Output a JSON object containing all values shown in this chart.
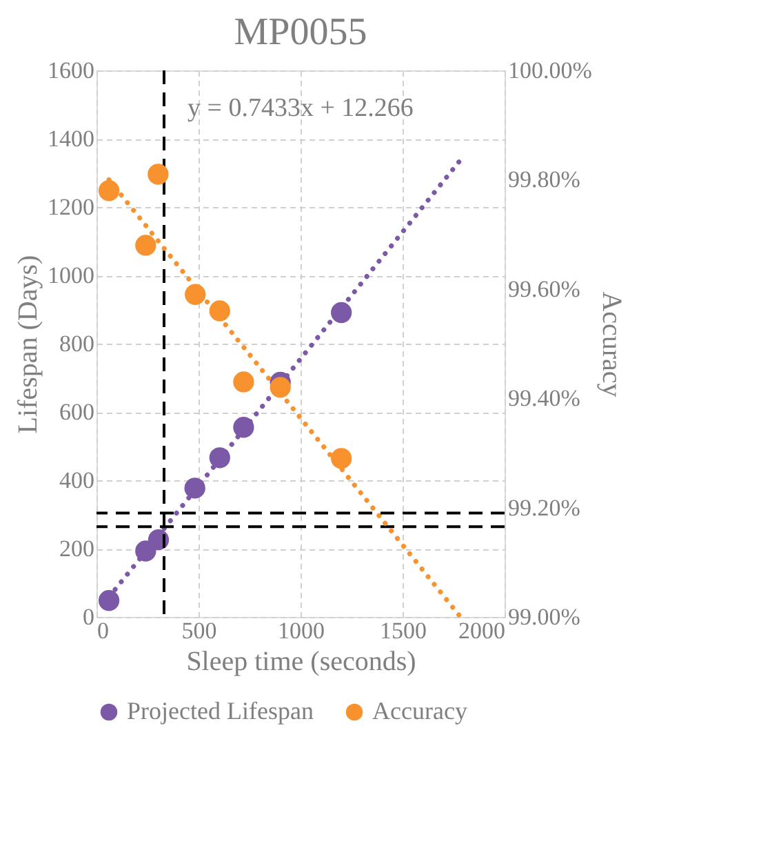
{
  "chart_data": {
    "type": "scatter",
    "title": "MP0055",
    "xlabel": "Sleep time (seconds)",
    "ylabel": "Lifespan (Days)",
    "y2label": "Accuracy",
    "xlim": [
      0,
      2000
    ],
    "xticks": [
      0,
      500,
      1000,
      1500,
      2000
    ],
    "ylim": [
      0,
      1600
    ],
    "yticks": [
      0,
      200,
      400,
      600,
      800,
      1000,
      1200,
      1400,
      1600
    ],
    "y2lim": [
      99.0,
      100.0
    ],
    "y2ticks": [
      {
        "value": 99.0,
        "label": "99.00%"
      },
      {
        "value": 99.2,
        "label": "99.20%"
      },
      {
        "value": 99.4,
        "label": "99.40%"
      },
      {
        "value": 99.6,
        "label": "99.60%"
      },
      {
        "value": 99.8,
        "label": "99.80%"
      },
      {
        "value": 100.0,
        "label": "100.00%"
      }
    ],
    "series": [
      {
        "name": "Projected Lifespan",
        "color": "#7b59a6",
        "x": [
          61,
          241,
          304,
          482,
          604,
          721,
          901,
          1200
        ],
        "values": [
          48,
          193,
          226,
          377,
          466,
          555,
          687,
          891
        ]
      },
      {
        "name": "Accuracy",
        "axis": "y2",
        "color": "#f7922f",
        "x": [
          61,
          241,
          302,
          484,
          604,
          721,
          901,
          1200
        ],
        "values": [
          99.78,
          99.68,
          99.81,
          99.59,
          99.56,
          99.43,
          99.42,
          99.29
        ]
      },
      {
        "type": "line",
        "line_style": "dotted",
        "marker": "none",
        "color": "#7b59a6",
        "x": [
          61,
          1784
        ],
        "values": [
          58,
          1338
        ]
      },
      {
        "type": "line",
        "line_style": "dotted",
        "marker": "none",
        "axis": "y2",
        "color": "#f7922f",
        "x": [
          61,
          1784
        ],
        "values": [
          99.8,
          99.0
        ]
      }
    ],
    "ref_lines": [
      {
        "axis": "x",
        "value": 331,
        "color": "#000000",
        "line_style": "dashed"
      },
      {
        "axis": "y",
        "value": 264,
        "color": "#000000",
        "line_style": "dashed"
      },
      {
        "axis": "y2",
        "value": 99.19,
        "color": "#000000",
        "line_style": "dashed"
      }
    ],
    "annotations": [
      "y = 0.7433x + 12.266"
    ],
    "marker": "circle",
    "grid": true,
    "legend": "bottom"
  }
}
